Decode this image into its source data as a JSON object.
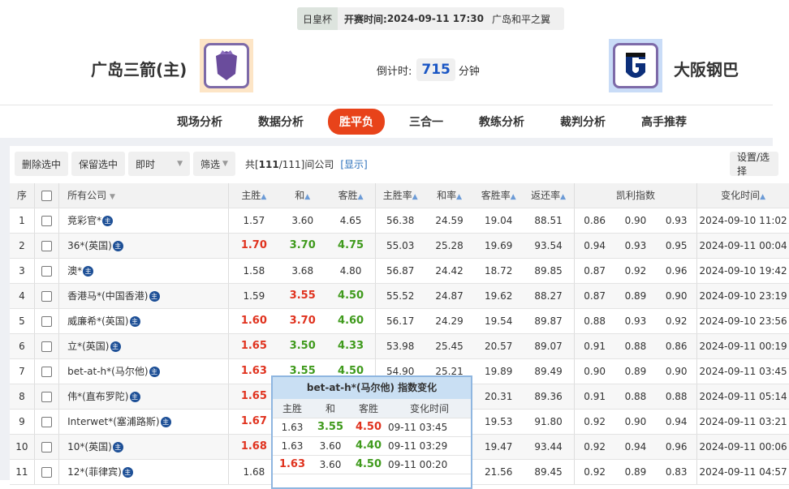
{
  "match": {
    "cup": "日皇杯",
    "time_label": "开赛时间:",
    "time": "2024-09-11 17:30",
    "venue": "广岛和平之翼",
    "home": "广岛三箭(主)",
    "away": "大阪钢巴",
    "countdown_label": "倒计时:",
    "countdown": "715",
    "countdown_unit": "分钟"
  },
  "tabs": [
    {
      "label": "现场分析"
    },
    {
      "label": "数据分析"
    },
    {
      "label": "胜平负",
      "active": true
    },
    {
      "label": "三合一"
    },
    {
      "label": "教练分析"
    },
    {
      "label": "裁判分析"
    },
    {
      "label": "高手推荐"
    }
  ],
  "toolbar": {
    "delete": "删除选中",
    "keep": "保留选中",
    "mode": "即时",
    "filter": "筛选",
    "count_pre": "共[",
    "count": "111",
    "count_total": "/111]",
    "count_post": "间公司",
    "show": "[显示]",
    "settings": "设置/选择"
  },
  "colors": {
    "red": "#e0321e",
    "green": "#3f9a1c",
    "accent": "#e8431a"
  },
  "headers": {
    "idx": "序",
    "company": "所有公司",
    "h": "主胜",
    "d": "和",
    "a": "客胜",
    "hr": "主胜率",
    "dr": "和率",
    "ar": "客胜率",
    "ret": "返还率",
    "kelly": "凯利指数",
    "time": "变化时间"
  },
  "rows": [
    {
      "i": "1",
      "c": "竞彩官*",
      "h": "1.57",
      "d": "3.60",
      "a": "4.65",
      "hr": "56.38",
      "dr": "24.59",
      "ar": "19.04",
      "ret": "88.51",
      "k1": "0.86",
      "k2": "0.90",
      "k3": "0.93",
      "t": "2024-09-10 11:02",
      "hc": "",
      "dc": "",
      "ac": ""
    },
    {
      "i": "2",
      "c": "36*(英国)",
      "h": "1.70",
      "d": "3.70",
      "a": "4.75",
      "hr": "55.03",
      "dr": "25.28",
      "ar": "19.69",
      "ret": "93.54",
      "k1": "0.94",
      "k2": "0.93",
      "k3": "0.95",
      "t": "2024-09-11 00:04",
      "hc": "r",
      "dc": "g",
      "ac": "g"
    },
    {
      "i": "3",
      "c": "澳*",
      "h": "1.58",
      "d": "3.68",
      "a": "4.80",
      "hr": "56.87",
      "dr": "24.42",
      "ar": "18.72",
      "ret": "89.85",
      "k1": "0.87",
      "k2": "0.92",
      "k3": "0.96",
      "t": "2024-09-10 19:42",
      "hc": "",
      "dc": "",
      "ac": ""
    },
    {
      "i": "4",
      "c": "香港马*(中国香港)",
      "h": "1.59",
      "d": "3.55",
      "a": "4.50",
      "hr": "55.52",
      "dr": "24.87",
      "ar": "19.62",
      "ret": "88.27",
      "k1": "0.87",
      "k2": "0.89",
      "k3": "0.90",
      "t": "2024-09-10 23:19",
      "hc": "",
      "dc": "r",
      "ac": "g"
    },
    {
      "i": "5",
      "c": "威廉希*(英国)",
      "h": "1.60",
      "d": "3.70",
      "a": "4.60",
      "hr": "56.17",
      "dr": "24.29",
      "ar": "19.54",
      "ret": "89.87",
      "k1": "0.88",
      "k2": "0.93",
      "k3": "0.92",
      "t": "2024-09-10 23:56",
      "hc": "r",
      "dc": "r",
      "ac": "g"
    },
    {
      "i": "6",
      "c": "立*(英国)",
      "h": "1.65",
      "d": "3.50",
      "a": "4.33",
      "hr": "53.98",
      "dr": "25.45",
      "ar": "20.57",
      "ret": "89.07",
      "k1": "0.91",
      "k2": "0.88",
      "k3": "0.86",
      "t": "2024-09-11 00:19",
      "hc": "r",
      "dc": "g",
      "ac": "g"
    },
    {
      "i": "7",
      "c": "bet-at-h*(马尔他)",
      "h": "1.63",
      "d": "3.55",
      "a": "4.50",
      "hr": "54.90",
      "dr": "25.21",
      "ar": "19.89",
      "ret": "89.49",
      "k1": "0.90",
      "k2": "0.89",
      "k3": "0.90",
      "t": "2024-09-11 03:45",
      "hc": "r",
      "dc": "g",
      "ac": "g"
    },
    {
      "i": "8",
      "c": "伟*(直布罗陀)",
      "h": "1.65",
      "ar": "20.31",
      "ret": "89.36",
      "k1": "0.91",
      "k2": "0.88",
      "k3": "0.88",
      "t": "2024-09-11 05:14",
      "hc": "r"
    },
    {
      "i": "9",
      "c": "Interwet*(塞浦路斯)",
      "h": "1.67",
      "ar": "19.53",
      "ret": "91.80",
      "k1": "0.92",
      "k2": "0.90",
      "k3": "0.94",
      "t": "2024-09-11 03:21",
      "hc": "r"
    },
    {
      "i": "10",
      "c": "10*(英国)",
      "h": "1.68",
      "ar": "19.47",
      "ret": "93.44",
      "k1": "0.92",
      "k2": "0.94",
      "k3": "0.96",
      "t": "2024-09-11 00:06",
      "hc": "r"
    },
    {
      "i": "11",
      "c": "12*(菲律宾)",
      "h": "1.68",
      "ar": "21.56",
      "ret": "89.45",
      "k1": "0.92",
      "k2": "0.89",
      "k3": "0.83",
      "t": "2024-09-11 04:57",
      "hc": ""
    }
  ],
  "popup": {
    "title": "bet-at-h*(马尔他) 指数变化",
    "headers": [
      "主胜",
      "和",
      "客胜",
      "变化时间"
    ],
    "rows": [
      {
        "h": "1.63",
        "d": "3.55",
        "a": "4.50",
        "t": "09-11 03:45",
        "hc": "",
        "dc": "g",
        "ac": "r"
      },
      {
        "h": "1.63",
        "d": "3.60",
        "a": "4.40",
        "t": "09-11 03:29",
        "hc": "",
        "dc": "",
        "ac": "g"
      },
      {
        "h": "1.63",
        "d": "3.60",
        "a": "4.50",
        "t": "09-11 00:20",
        "hc": "r",
        "dc": "",
        "ac": "g"
      }
    ]
  }
}
